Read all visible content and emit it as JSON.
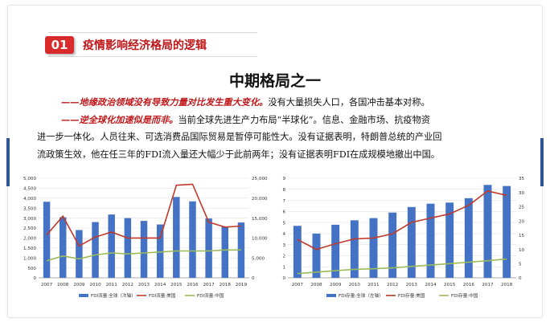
{
  "header": {
    "number": "01",
    "title": "疫情影响经济格局的逻辑"
  },
  "subtitle": "中期格局之一",
  "paragraphs": {
    "p1_red": "——地缘政治领域没有导致力量对比发生重大变化。",
    "p1_rest": "没有大量损失人口，各国冲击基本对称。",
    "p2_red": "——逆全球化加速似是而非。",
    "p2_rest": "当前全球先进生产力布局“半球化”。信息、金融市场、抗疫物资",
    "p3": "进一步一体化。人员往来、可选消费品国际贸易是暂停可能性大。没有证据表明，特朗普总统的产业回",
    "p4": "流政策生效，他在任三年的FDI流入量还大幅少于此前两年；没有证据表明FDI在成规模地撤出中国。"
  },
  "colors": {
    "bar": "#4472c4",
    "us": "#c0392b",
    "cn": "#9bbb59",
    "accent": "#d92b2b",
    "title": "#c0171a"
  },
  "chart_data": [
    {
      "type": "bar",
      "categories": [
        "2007",
        "2008",
        "2009",
        "2010",
        "2011",
        "2012",
        "2013",
        "2014",
        "2015",
        "2016",
        "2017",
        "2018",
        "2019"
      ],
      "y_left_ticks": [
        "0",
        "500",
        "1,000",
        "1,500",
        "2,000",
        "2,500",
        "3,000",
        "3,500",
        "4,000",
        "4,500",
        "5,000"
      ],
      "y_right_ticks": [
        "0",
        "5,000",
        "10,000",
        "15,000",
        "20,000",
        "25,000"
      ],
      "ylim_left": [
        0,
        5000
      ],
      "ylim_right": [
        0,
        25000
      ],
      "series": [
        {
          "name": "FDI流量:全球（次轴）",
          "axis": "right",
          "kind": "bar",
          "values": [
            19100,
            15200,
            12000,
            14000,
            15900,
            15000,
            14300,
            13400,
            20300,
            19200,
            14900,
            12900,
            13900
          ]
        },
        {
          "name": "FDI流量:美国",
          "axis": "left",
          "kind": "line",
          "values": [
            2150,
            3100,
            1600,
            2050,
            2300,
            2000,
            2000,
            2000,
            4650,
            4700,
            2800,
            2550,
            2600
          ]
        },
        {
          "name": "FDI流量:中国",
          "axis": "left",
          "kind": "line",
          "values": [
            850,
            1100,
            950,
            1150,
            1250,
            1200,
            1250,
            1300,
            1350,
            1350,
            1350,
            1400,
            1400
          ]
        }
      ],
      "grid": true,
      "legend": "bottom"
    },
    {
      "type": "bar",
      "categories": [
        "2007",
        "2008",
        "2009",
        "2010",
        "2011",
        "2012",
        "2013",
        "2014",
        "2015",
        "2016",
        "2017",
        "2018"
      ],
      "y_left_ticks": [
        "0",
        "1",
        "2",
        "3",
        "4",
        "5",
        "6",
        "7",
        "8",
        "9"
      ],
      "y_right_ticks": [
        "0",
        "5",
        "10",
        "15",
        "20",
        "25",
        "30",
        "35"
      ],
      "ylim_left": [
        0,
        9
      ],
      "ylim_right": [
        0,
        35
      ],
      "series": [
        {
          "name": "FDI存量:全球（左轴）",
          "axis": "left",
          "kind": "bar",
          "values": [
            4.7,
            4.0,
            4.8,
            5.2,
            5.4,
            5.9,
            6.4,
            6.7,
            6.8,
            7.2,
            8.4,
            8.3
          ]
        },
        {
          "name": "FDI存量:美国",
          "axis": "right",
          "kind": "line",
          "values": [
            13.5,
            10.0,
            12.0,
            13.7,
            14.0,
            15.5,
            19.5,
            21.0,
            22.5,
            25.5,
            30.5,
            29.0
          ]
        },
        {
          "name": "FDI存量:中国",
          "axis": "right",
          "kind": "line",
          "values": [
            1.5,
            2.0,
            2.5,
            3.0,
            3.2,
            3.5,
            4.0,
            4.5,
            5.0,
            5.5,
            6.0,
            6.6
          ]
        }
      ],
      "grid": true,
      "legend": "bottom"
    }
  ]
}
